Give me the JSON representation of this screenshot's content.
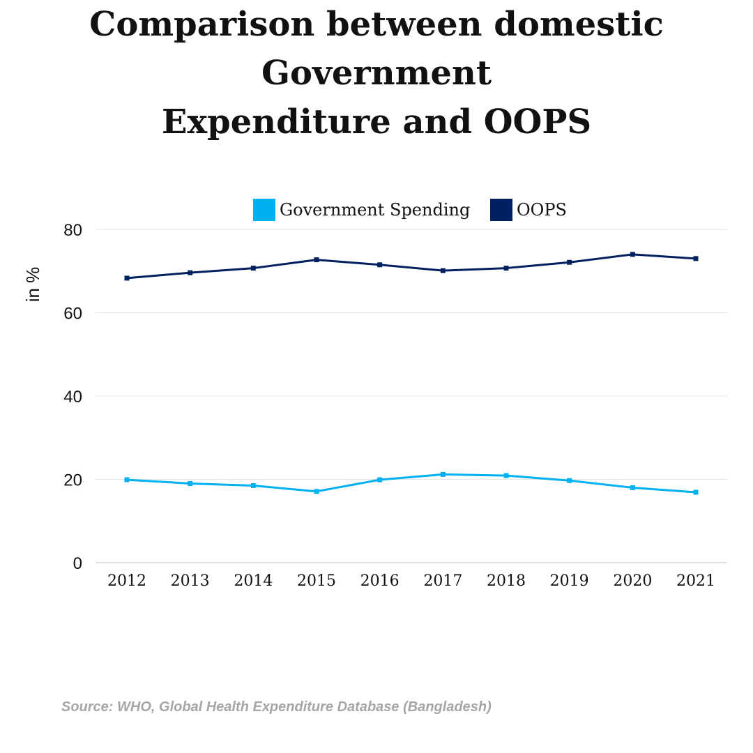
{
  "title_line1": "Comparison between domestic Government",
  "title_line2": "Expenditure and OOPS",
  "source": "Source: WHO, Global Health Expenditure Database (Bangladesh)",
  "chart_data": {
    "type": "line",
    "title": "Comparison between domestic Government Expenditure and OOPS",
    "xlabel": "",
    "ylabel": "in %",
    "ylim": [
      0,
      80
    ],
    "yticks": [
      0,
      20,
      40,
      60,
      80
    ],
    "grid": true,
    "legend_position": "top-center",
    "categories": [
      "2012",
      "2013",
      "2014",
      "2015",
      "2016",
      "2017",
      "2018",
      "2019",
      "2020",
      "2021"
    ],
    "series": [
      {
        "name": "Government Spending",
        "color": "#00b0f0",
        "values": [
          19.9,
          19.0,
          18.5,
          17.1,
          19.9,
          21.2,
          20.9,
          19.7,
          18.0,
          16.9
        ]
      },
      {
        "name": "OOPS",
        "color": "#002060",
        "values": [
          68.3,
          69.6,
          70.7,
          72.7,
          71.5,
          70.1,
          70.7,
          72.1,
          74.0,
          73.0
        ]
      }
    ]
  }
}
